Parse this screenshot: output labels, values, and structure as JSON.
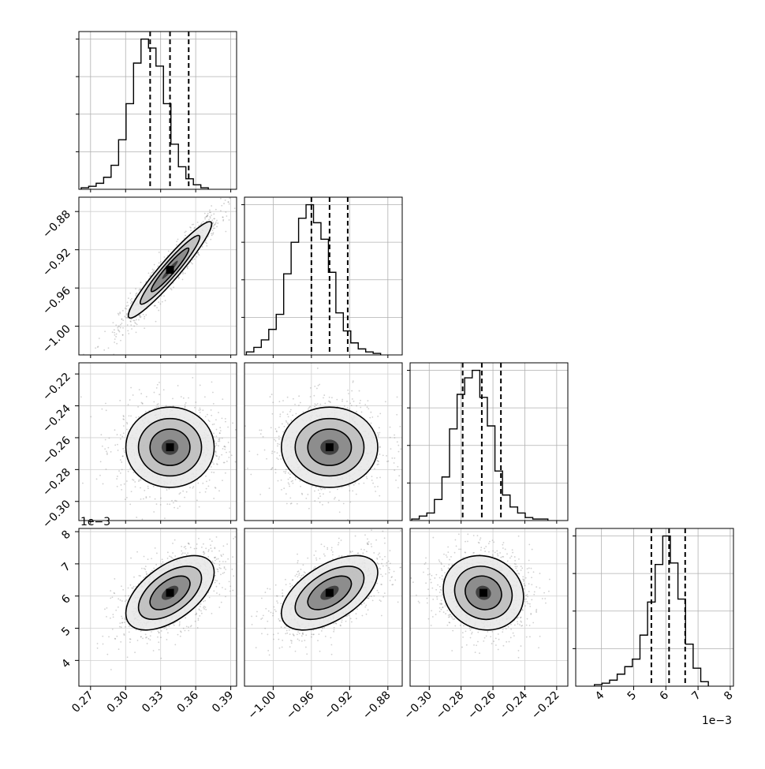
{
  "chart_data": {
    "type": "corner",
    "grid": true,
    "n_params": 4,
    "params": [
      {
        "range": [
          0.26,
          0.395
        ],
        "ticks": [
          "0.27",
          "0.30",
          "0.33",
          "0.36",
          "0.39"
        ],
        "tick_values": [
          0.27,
          0.3,
          0.33,
          0.36,
          0.39
        ],
        "offset_label": ""
      },
      {
        "range": [
          -1.03,
          -0.865
        ],
        "ticks": [
          "−1.00",
          "−0.96",
          "−0.92",
          "−0.88"
        ],
        "tick_values": [
          -1.0,
          -0.96,
          -0.92,
          -0.88
        ],
        "offset_label": ""
      },
      {
        "range": [
          -0.312,
          -0.213
        ],
        "ticks": [
          "−0.30",
          "−0.28",
          "−0.26",
          "−0.24",
          "−0.22"
        ],
        "tick_values": [
          -0.3,
          -0.28,
          -0.26,
          -0.24,
          -0.22
        ],
        "offset_label": ""
      },
      {
        "range": [
          3.2,
          8.1
        ],
        "ticks": [
          "4",
          "5",
          "6",
          "7",
          "8"
        ],
        "tick_values": [
          4,
          5,
          6,
          7,
          8
        ],
        "offset_label": "1e−3"
      }
    ],
    "quantiles": [
      [
        0.321,
        0.338,
        0.354
      ],
      [
        -0.96,
        -0.941,
        -0.922
      ],
      [
        -0.279,
        -0.267,
        -0.255
      ],
      [
        5.55,
        6.1,
        6.6
      ]
    ],
    "histograms": [
      {
        "edges_start": 0.262,
        "bin_width": 0.0064,
        "counts": [
          1,
          2,
          4,
          8,
          16,
          33,
          57,
          84,
          100,
          94,
          82,
          57,
          30,
          15,
          7,
          3,
          1
        ]
      },
      {
        "edges_start": -1.028,
        "bin_width": 0.0078,
        "counts": [
          2,
          5,
          10,
          17,
          27,
          54,
          75,
          91,
          100,
          88,
          77,
          55,
          28,
          16,
          8,
          4,
          2,
          1
        ]
      },
      {
        "edges_start": -0.311,
        "bin_width": 0.00475,
        "counts": [
          1,
          3,
          5,
          14,
          29,
          61,
          84,
          95,
          100,
          82,
          63,
          33,
          17,
          9,
          5,
          2,
          1,
          1
        ]
      },
      {
        "edges_start": 3.78,
        "bin_width": 0.236,
        "counts": [
          1,
          2,
          4,
          8,
          13,
          18,
          34,
          56,
          81,
          100,
          82,
          58,
          28,
          12,
          3
        ]
      }
    ],
    "pairs": [
      {
        "row": 1,
        "col": 0,
        "mean": [
          0.338,
          -0.941
        ],
        "sd": [
          0.017,
          0.024
        ],
        "corr": 0.95
      },
      {
        "row": 2,
        "col": 0,
        "mean": [
          0.338,
          -0.266
        ],
        "sd": [
          0.018,
          0.012
        ],
        "corr": 0.0
      },
      {
        "row": 2,
        "col": 1,
        "mean": [
          -0.941,
          -0.266
        ],
        "sd": [
          0.024,
          0.012
        ],
        "corr": 0.0
      },
      {
        "row": 3,
        "col": 0,
        "mean": [
          0.338,
          6.1
        ],
        "sd": [
          0.018,
          0.55
        ],
        "corr": 0.55
      },
      {
        "row": 3,
        "col": 1,
        "mean": [
          -0.941,
          6.1
        ],
        "sd": [
          0.024,
          0.55
        ],
        "corr": 0.55
      },
      {
        "row": 3,
        "col": 2,
        "mean": [
          -0.266,
          6.1
        ],
        "sd": [
          0.012,
          0.55
        ],
        "corr": -0.1
      }
    ]
  }
}
